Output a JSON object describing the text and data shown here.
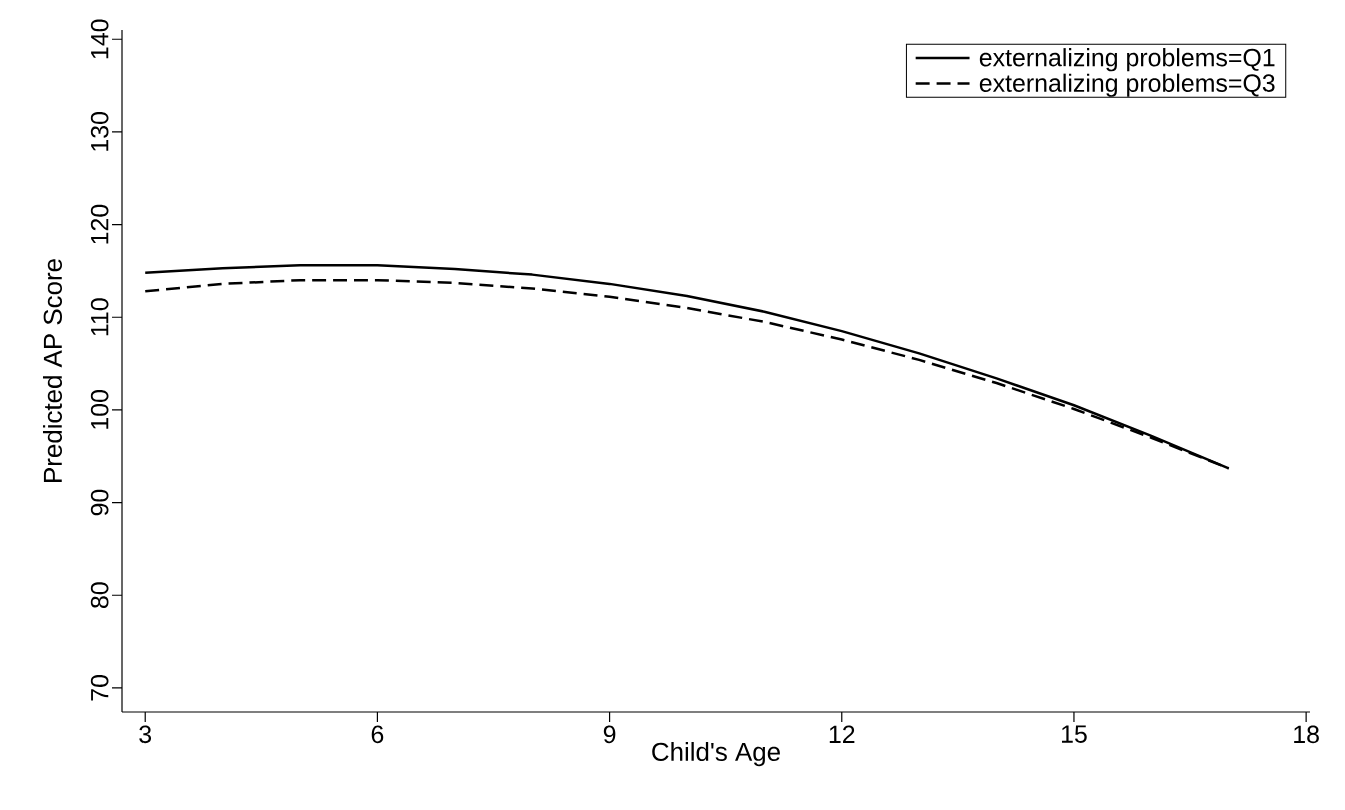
{
  "chart_data": {
    "type": "line",
    "xlabel": "Child's Age",
    "ylabel": "Predicted AP Score",
    "x": [
      3,
      4,
      5,
      6,
      7,
      8,
      9,
      10,
      11,
      12,
      13,
      14,
      15,
      16,
      17
    ],
    "series": [
      {
        "name": "externalizing problems=Q1",
        "color": "#000000",
        "line_style": "solid",
        "values": [
          114.8,
          115.3,
          115.6,
          115.6,
          115.2,
          114.6,
          113.6,
          112.3,
          110.6,
          108.5,
          106.1,
          103.4,
          100.5,
          97.2,
          93.7
        ]
      },
      {
        "name": "externalizing problems=Q3",
        "color": "#000000",
        "line_style": "dashed",
        "values": [
          112.8,
          113.6,
          114.0,
          114.0,
          113.7,
          113.1,
          112.2,
          111.0,
          109.5,
          107.6,
          105.4,
          102.9,
          100.1,
          97.0,
          93.7
        ]
      }
    ],
    "xlim": [
      2.7,
      18.05
    ],
    "ylim": [
      67.4,
      141
    ],
    "xticks": [
      3,
      6,
      9,
      12,
      15,
      18
    ],
    "yticks": [
      70,
      80,
      90,
      100,
      110,
      120,
      130,
      140
    ],
    "grid": false,
    "legend": "top right",
    "marker": "none"
  }
}
